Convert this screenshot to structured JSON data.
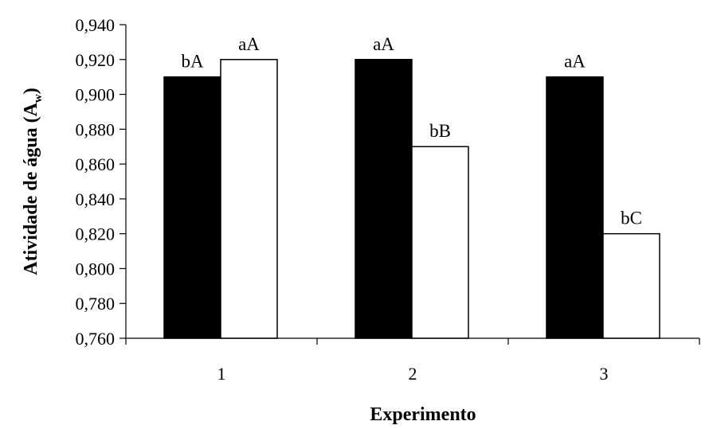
{
  "chart_data": {
    "type": "bar",
    "categories": [
      "1",
      "2",
      "3"
    ],
    "series": [
      {
        "color": "#000000",
        "values": [
          0.91,
          0.92,
          0.91
        ],
        "labels": [
          "bA",
          "aA",
          "aA"
        ]
      },
      {
        "color": "#ffffff",
        "values": [
          0.92,
          0.87,
          0.82
        ],
        "labels": [
          "aA",
          "bB",
          "bC"
        ]
      }
    ],
    "ylim": [
      0.76,
      0.94
    ],
    "yticks": [
      "0,760",
      "0,780",
      "0,800",
      "0,820",
      "0,840",
      "0,860",
      "0,880",
      "0,900",
      "0,920",
      "0,940"
    ],
    "xlabel": "Experimento",
    "ylabel": {
      "main": "Atividade de água (A",
      "subscript": "w",
      "suffix": ")"
    },
    "grid": false,
    "legend": "none"
  }
}
